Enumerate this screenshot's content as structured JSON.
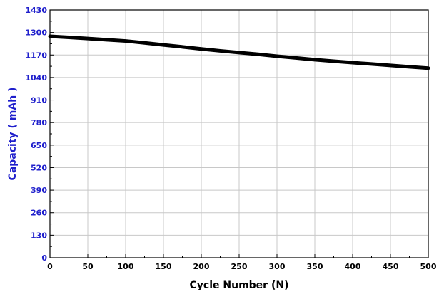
{
  "chart_data": {
    "type": "line",
    "title": "",
    "xlabel": "Cycle Number (N)",
    "ylabel": "Capacity ( mAh )",
    "xlim": [
      0,
      500
    ],
    "ylim": [
      0,
      1430
    ],
    "x_ticks": [
      "0",
      "50",
      "100",
      "150",
      "200",
      "250",
      "300",
      "350",
      "400",
      "450",
      "500"
    ],
    "y_ticks": [
      "0",
      "130",
      "260",
      "390",
      "520",
      "650",
      "780",
      "910",
      "1040",
      "1170",
      "1300",
      "1430"
    ],
    "grid": true,
    "series": [
      {
        "x": [
          0,
          25,
          50,
          75,
          100,
          125,
          150,
          175,
          200,
          225,
          250,
          275,
          300,
          325,
          350,
          375,
          400,
          425,
          450,
          475,
          500
        ],
        "y": [
          1278,
          1272,
          1265,
          1258,
          1251,
          1240,
          1228,
          1217,
          1205,
          1194,
          1184,
          1174,
          1163,
          1153,
          1143,
          1134,
          1126,
          1118,
          1110,
          1102,
          1094
        ]
      }
    ],
    "colors": {
      "line": "#000000",
      "y_axis_text": "#1f1fcc",
      "x_axis_text": "#000000",
      "grid": "#c8c8c8"
    }
  }
}
